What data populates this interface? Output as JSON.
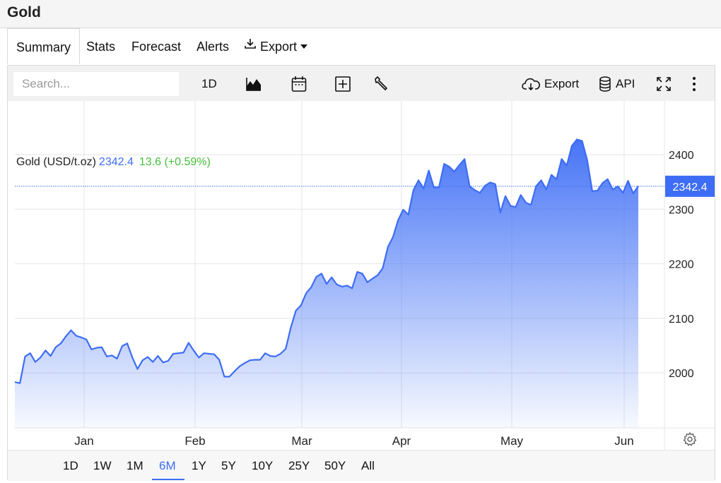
{
  "app": {
    "title": "Gold"
  },
  "tabs": [
    {
      "label": "Summary",
      "active": true
    },
    {
      "label": "Stats"
    },
    {
      "label": "Forecast"
    },
    {
      "label": "Alerts"
    },
    {
      "label": "Export"
    }
  ],
  "toolbar": {
    "search_placeholder": "Search...",
    "interval": "1D",
    "export_label": "Export",
    "api_label": "API"
  },
  "legend": {
    "name": "Gold (USD/t.oz)",
    "price": "2342.4",
    "change": "13.6 (+0.59%)"
  },
  "ranges": [
    "1D",
    "1W",
    "1M",
    "6M",
    "1Y",
    "5Y",
    "10Y",
    "25Y",
    "50Y",
    "All"
  ],
  "active_range": "6M",
  "colors": {
    "accent": "#3d6df5",
    "positive": "#45c03a",
    "grid": "#e6e6e6"
  },
  "chart_data": {
    "type": "area",
    "x_tick_labels": [
      "Jan",
      "Feb",
      "Mar",
      "Apr",
      "May",
      "Jun"
    ],
    "y_ticks": [
      2000,
      2100,
      2200,
      2300,
      2400
    ],
    "ylim": [
      1900,
      2500
    ],
    "last_value_label": "2342.4",
    "grid": true,
    "series": [
      {
        "values": [
          1983,
          1981,
          2030,
          2036,
          2020,
          2028,
          2041,
          2031,
          2047,
          2054,
          2067,
          2078,
          2068,
          2065,
          2061,
          2043,
          2046,
          2047,
          2030,
          2032,
          2026,
          2049,
          2054,
          2028,
          2007,
          2023,
          2029,
          2020,
          2031,
          2019,
          2022,
          2035,
          2036,
          2037,
          2055,
          2041,
          2028,
          2036,
          2035,
          2034,
          2024,
          1993,
          1993,
          2003,
          2012,
          2018,
          2023,
          2024,
          2024,
          2036,
          2031,
          2030,
          2035,
          2044,
          2083,
          2114,
          2124,
          2146,
          2157,
          2176,
          2182,
          2163,
          2175,
          2162,
          2158,
          2160,
          2155,
          2185,
          2182,
          2166,
          2173,
          2179,
          2192,
          2231,
          2249,
          2280,
          2299,
          2290,
          2335,
          2353,
          2338,
          2371,
          2340,
          2340,
          2383,
          2378,
          2369,
          2381,
          2392,
          2342,
          2335,
          2330,
          2343,
          2349,
          2346,
          2294,
          2324,
          2306,
          2304,
          2326,
          2312,
          2308,
          2342,
          2353,
          2336,
          2363,
          2355,
          2392,
          2380,
          2416,
          2428,
          2425,
          2390,
          2333,
          2334,
          2348,
          2355,
          2336,
          2342,
          2330,
          2352,
          2329,
          2342
        ]
      }
    ]
  }
}
